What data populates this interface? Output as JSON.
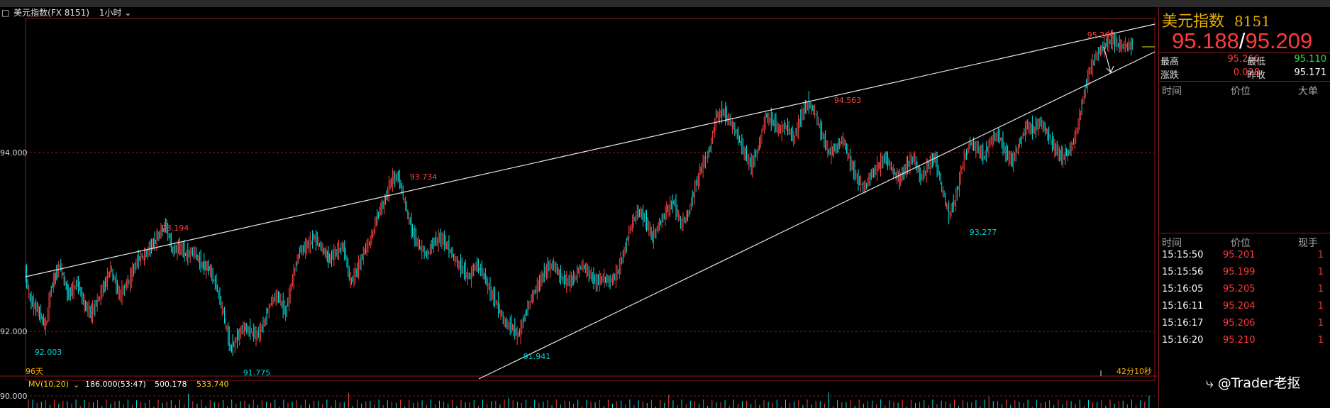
{
  "toolbar": {
    "instrument": "美元指数(FX 8151)",
    "period": "1小时"
  },
  "chart": {
    "y_tick_labels": [
      "94.000",
      "92.000",
      "90.000"
    ],
    "peak_labels": [
      "92.003",
      "93.194",
      "91.775",
      "93.734",
      "91.941",
      "94.563",
      "93.277",
      "95.266"
    ],
    "bottom_left_label": "96天",
    "bottom_right_label": "42分10秒",
    "indicator": {
      "name": "MV(10,20)",
      "v1": "186.000(53:47)",
      "v2": "500.178",
      "v3": "533.740"
    },
    "colors": {
      "up": "#ff4040",
      "down": "#00e5e5",
      "trend": "#e8e8e8",
      "grid": "#8b1a1a"
    }
  },
  "chart_data": {
    "type": "line",
    "title": "美元指数(FX 8151) 1小时",
    "xlabel": "",
    "ylabel": "",
    "ylim": [
      91.5,
      95.5
    ],
    "series": [
      {
        "x": [
          0,
          8,
          18,
          30,
          38,
          50,
          62,
          75,
          85,
          95,
          110,
          122,
          135,
          150,
          160,
          170,
          180,
          192,
          200,
          210,
          220,
          230,
          240,
          250,
          262,
          272,
          282,
          292,
          300,
          310,
          320,
          330,
          340,
          350,
          360,
          370,
          380,
          390,
          400,
          410,
          420,
          432,
          442,
          452,
          462,
          472,
          482,
          492,
          500,
          510,
          520,
          530,
          540,
          550,
          560,
          570,
          580,
          590,
          600,
          610,
          620,
          630,
          640,
          650,
          660,
          670,
          680,
          690,
          700,
          710,
          720,
          730,
          740,
          750,
          760,
          770,
          780,
          790,
          800,
          810,
          820,
          830,
          840,
          850,
          860,
          870,
          880,
          890,
          900,
          910,
          920,
          930,
          940,
          950,
          960,
          970,
          980,
          990,
          1000,
          1010,
          1020,
          1030,
          1040,
          1050,
          1060,
          1070,
          1080,
          1090,
          1100,
          1110,
          1120,
          1130,
          1140,
          1150,
          1160,
          1170,
          1180,
          1190,
          1200,
          1210,
          1220,
          1230,
          1240,
          1250,
          1260,
          1270
        ],
        "values": [
          92.7,
          92.35,
          92.25,
          92.05,
          92.5,
          92.75,
          92.4,
          92.55,
          92.3,
          92.2,
          92.45,
          92.7,
          92.4,
          92.6,
          92.8,
          92.85,
          92.95,
          93.1,
          93.19,
          92.9,
          92.95,
          92.85,
          92.9,
          92.75,
          92.7,
          92.5,
          92.2,
          91.8,
          91.9,
          92.05,
          92.0,
          91.95,
          92.1,
          92.35,
          92.4,
          92.2,
          92.6,
          92.9,
          92.95,
          93.05,
          92.95,
          92.8,
          92.9,
          92.95,
          92.55,
          92.7,
          92.9,
          93.05,
          93.3,
          93.45,
          93.7,
          93.73,
          93.4,
          93.1,
          92.95,
          92.85,
          93.0,
          93.05,
          92.95,
          92.8,
          92.7,
          92.6,
          92.75,
          92.65,
          92.45,
          92.3,
          92.1,
          92.05,
          91.95,
          92.2,
          92.4,
          92.55,
          92.7,
          92.75,
          92.6,
          92.55,
          92.6,
          92.75,
          92.65,
          92.55,
          92.6,
          92.55,
          92.65,
          92.9,
          93.2,
          93.35,
          93.25,
          93.05,
          93.2,
          93.35,
          93.45,
          93.2,
          93.3,
          93.6,
          93.85,
          94.0,
          94.4,
          94.45,
          94.35,
          94.2,
          94.0,
          93.85,
          94.05,
          94.4,
          94.35,
          94.25,
          94.3,
          94.15,
          94.4,
          94.55,
          94.45,
          94.2,
          94.0,
          94.05,
          94.15,
          93.9,
          93.7,
          93.6,
          93.75,
          93.85,
          93.95,
          93.8,
          93.7,
          93.85,
          93.95,
          93.7
        ]
      },
      {
        "x": [
          1270,
          1280,
          1290,
          1300,
          1310,
          1320,
          1330,
          1340,
          1350,
          1360,
          1370,
          1380,
          1390,
          1400,
          1410,
          1420,
          1430,
          1440,
          1450,
          1460,
          1470,
          1480,
          1490,
          1500,
          1510,
          1520,
          1530,
          1540,
          1550,
          1560,
          1570
        ],
        "values": [
          93.7,
          93.85,
          93.95,
          93.6,
          93.3,
          93.5,
          93.9,
          94.1,
          94.05,
          93.95,
          94.15,
          94.2,
          94.0,
          93.9,
          94.1,
          94.3,
          94.25,
          94.35,
          94.2,
          94.05,
          93.95,
          94.0,
          94.2,
          94.6,
          94.95,
          95.1,
          95.2,
          95.27,
          95.2,
          95.19,
          95.2
        ]
      }
    ]
  },
  "quote": {
    "name": "美元指数",
    "code": "8151",
    "bid": "95.188",
    "sep": "/",
    "ask": "95.209",
    "high_label": "最高",
    "high": "95.266",
    "low_label": "最低",
    "low": "95.110",
    "chg_label": "涨跌",
    "chg": "0.028",
    "prev_label": "昨收",
    "prev": "95.171"
  },
  "big_orders": {
    "headers": [
      "时间",
      "价位",
      "大单"
    ]
  },
  "ticks": {
    "headers": [
      "时间",
      "价位",
      "现手"
    ],
    "rows": [
      {
        "time": "15:15:50",
        "price": "95.201",
        "qty": "1"
      },
      {
        "time": "15:15:56",
        "price": "95.199",
        "qty": "1"
      },
      {
        "time": "15:16:05",
        "price": "95.205",
        "qty": "1"
      },
      {
        "time": "15:16:11",
        "price": "95.204",
        "qty": "1"
      },
      {
        "time": "15:16:17",
        "price": "95.206",
        "qty": "1"
      },
      {
        "time": "15:16:20",
        "price": "95.210",
        "qty": "1"
      }
    ]
  },
  "watermark": "@Trader老抠"
}
